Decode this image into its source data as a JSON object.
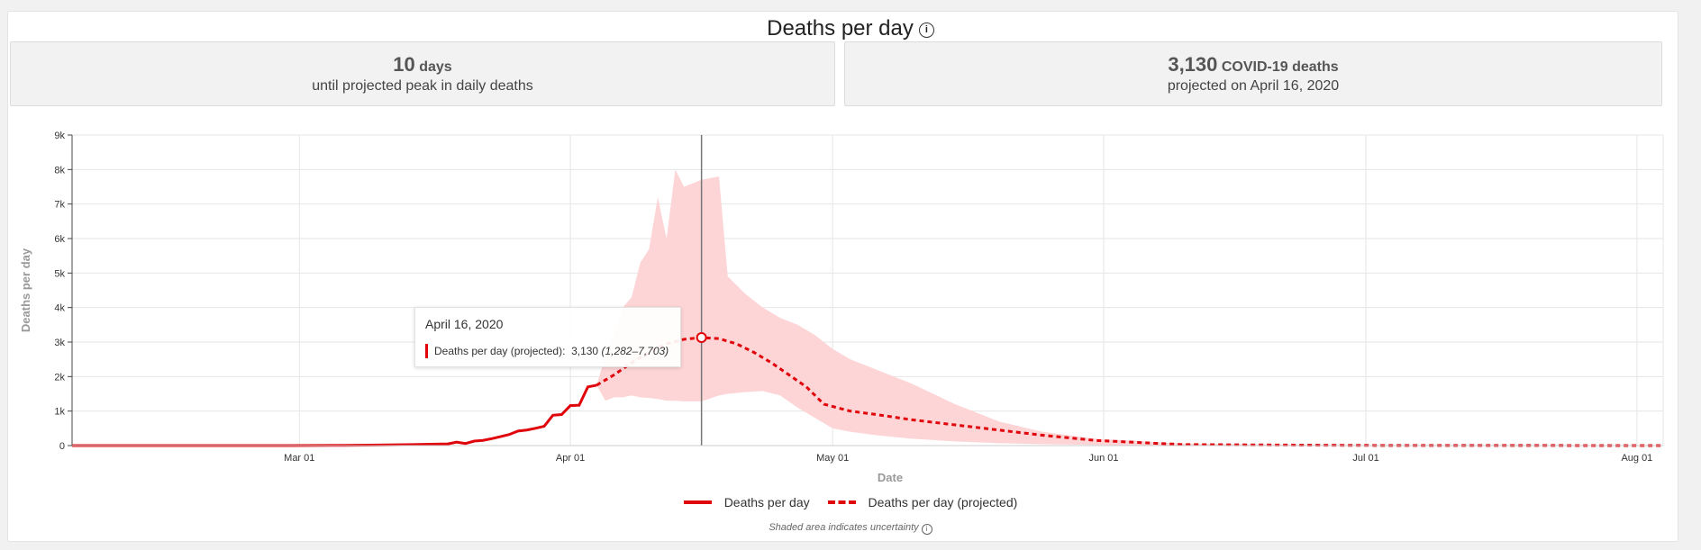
{
  "header": {
    "title": "Deaths per day",
    "info_icon": "info-icon"
  },
  "stats": {
    "left": {
      "value": "10",
      "unit": "days",
      "caption": "until projected peak in daily deaths"
    },
    "right": {
      "value": "3,130",
      "unit": "COVID-19 deaths",
      "caption": "projected on April 16, 2020"
    }
  },
  "tooltip": {
    "date": "April 16, 2020",
    "label": "Deaths per day (projected):",
    "value": "3,130",
    "range": "(1,282–7,703)"
  },
  "legend": {
    "actual": "Deaths per day",
    "projected": "Deaths per day (projected)"
  },
  "footnote": "Shaded area indicates uncertainty",
  "colors": {
    "line": "#e0040b",
    "band": "#fdd5d6",
    "grid": "#e6e6e6",
    "crosshair": "#777777"
  },
  "chart_data": {
    "type": "line",
    "title": "Deaths per day",
    "xlabel": "Date",
    "ylabel": "Deaths per day",
    "xlim": [
      "2020-02-04",
      "2020-08-04"
    ],
    "ylim": [
      0,
      9000
    ],
    "y_ticks": [
      0,
      1000,
      2000,
      3000,
      4000,
      5000,
      6000,
      7000,
      8000,
      9000
    ],
    "y_tick_labels": [
      "0",
      "1k",
      "2k",
      "3k",
      "4k",
      "5k",
      "6k",
      "7k",
      "8k",
      "9k"
    ],
    "x_ticks": [
      "2020-03-01",
      "2020-04-01",
      "2020-05-01",
      "2020-06-01",
      "2020-07-01",
      "2020-08-01"
    ],
    "x_tick_labels": [
      "Mar 01",
      "Apr 01",
      "May 01",
      "Jun 01",
      "Jul 01",
      "Aug 01"
    ],
    "grid": true,
    "legend_position": "bottom",
    "highlight": {
      "date": "2020-04-16",
      "value": 3130,
      "lower": 1282,
      "upper": 7703
    },
    "series": [
      {
        "name": "Deaths per day",
        "style": "solid",
        "x": [
          "2020-02-04",
          "2020-02-29",
          "2020-03-05",
          "2020-03-10",
          "2020-03-14",
          "2020-03-16",
          "2020-03-18",
          "2020-03-19",
          "2020-03-20",
          "2020-03-21",
          "2020-03-22",
          "2020-03-23",
          "2020-03-24",
          "2020-03-25",
          "2020-03-26",
          "2020-03-27",
          "2020-03-28",
          "2020-03-29",
          "2020-03-30",
          "2020-03-31",
          "2020-04-01",
          "2020-04-02",
          "2020-04-03",
          "2020-04-04"
        ],
        "y": [
          0,
          0,
          5,
          15,
          30,
          40,
          50,
          100,
          60,
          130,
          150,
          200,
          260,
          320,
          420,
          450,
          500,
          560,
          880,
          900,
          1160,
          1170,
          1700,
          1750
        ]
      },
      {
        "name": "Deaths per day (projected)",
        "style": "dashed",
        "x": [
          "2020-04-04",
          "2020-04-06",
          "2020-04-08",
          "2020-04-10",
          "2020-04-12",
          "2020-04-14",
          "2020-04-16",
          "2020-04-18",
          "2020-04-20",
          "2020-04-22",
          "2020-04-24",
          "2020-04-26",
          "2020-04-28",
          "2020-04-30",
          "2020-05-03",
          "2020-05-06",
          "2020-05-10",
          "2020-05-15",
          "2020-05-20",
          "2020-05-25",
          "2020-05-31",
          "2020-06-10",
          "2020-07-01",
          "2020-08-04"
        ],
        "y": [
          1750,
          2050,
          2400,
          2700,
          2950,
          3080,
          3130,
          3100,
          2950,
          2700,
          2400,
          2050,
          1700,
          1200,
          1000,
          900,
          750,
          600,
          450,
          300,
          150,
          30,
          5,
          0
        ]
      }
    ],
    "uncertainty_band": {
      "x": [
        "2020-04-04",
        "2020-04-05",
        "2020-04-06",
        "2020-04-07",
        "2020-04-08",
        "2020-04-09",
        "2020-04-10",
        "2020-04-11",
        "2020-04-12",
        "2020-04-13",
        "2020-04-14",
        "2020-04-15",
        "2020-04-16",
        "2020-04-18",
        "2020-04-19",
        "2020-04-21",
        "2020-04-23",
        "2020-04-25",
        "2020-04-27",
        "2020-04-29",
        "2020-05-01",
        "2020-05-03",
        "2020-05-06",
        "2020-05-10",
        "2020-05-15",
        "2020-05-20",
        "2020-05-25",
        "2020-05-31",
        "2020-06-10",
        "2020-07-01",
        "2020-08-04"
      ],
      "lower": [
        1750,
        1300,
        1400,
        1400,
        1450,
        1400,
        1380,
        1350,
        1300,
        1300,
        1280,
        1282,
        1282,
        1450,
        1500,
        1550,
        1580,
        1450,
        1100,
        800,
        500,
        400,
        300,
        200,
        120,
        70,
        40,
        20,
        5,
        0,
        0
      ],
      "upper": [
        1750,
        2600,
        3200,
        4000,
        4300,
        5300,
        5700,
        7200,
        6000,
        8000,
        7500,
        7600,
        7703,
        7800,
        4900,
        4400,
        4000,
        3700,
        3500,
        3200,
        2800,
        2500,
        2200,
        1800,
        1200,
        700,
        400,
        200,
        60,
        5,
        0
      ]
    }
  }
}
